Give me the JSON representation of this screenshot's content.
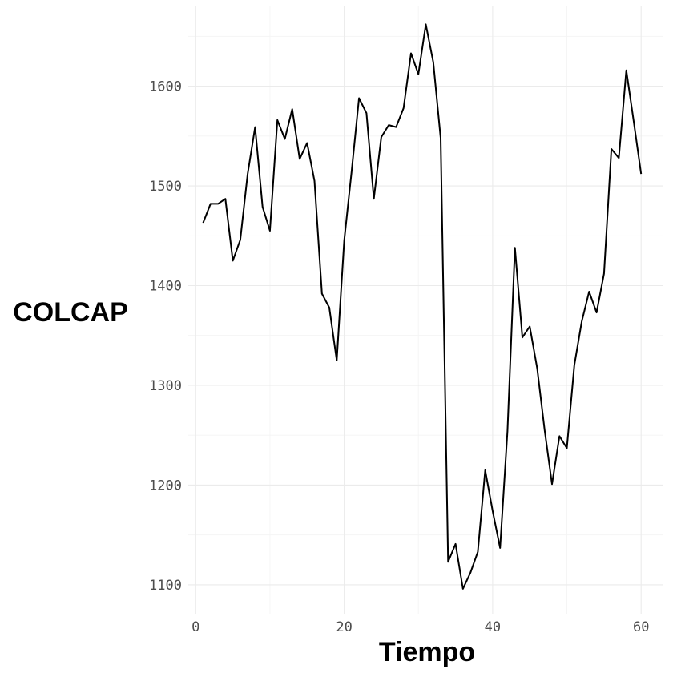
{
  "chart_data": {
    "type": "line",
    "title": "",
    "xlabel": "Tiempo",
    "ylabel": "COLCAP",
    "xlim": [
      -1,
      63
    ],
    "ylim": [
      1071,
      1680
    ],
    "x_ticks": [
      0,
      20,
      40,
      60
    ],
    "y_ticks": [
      1100,
      1200,
      1300,
      1400,
      1500,
      1600
    ],
    "grid": true,
    "legend": "none",
    "line_color": "#000000",
    "series": [
      {
        "x": [
          1,
          2,
          3,
          4,
          5,
          6,
          7,
          8,
          9,
          10,
          11,
          12,
          13,
          14,
          15,
          16,
          17,
          18,
          19,
          20,
          21,
          22,
          23,
          24,
          25,
          26,
          27,
          28,
          29,
          30,
          31,
          32,
          33,
          34,
          35,
          36,
          37,
          38,
          39,
          40,
          41,
          42,
          43,
          44,
          45,
          46,
          47,
          48,
          49,
          50,
          51,
          52,
          53,
          54,
          55,
          56,
          57,
          58,
          59,
          60
        ],
        "values": [
          1463,
          1482,
          1482,
          1487,
          1425,
          1446,
          1512,
          1559,
          1479,
          1455,
          1566,
          1547,
          1577,
          1527,
          1543,
          1505,
          1392,
          1378,
          1325,
          1445,
          1514,
          1588,
          1573,
          1487,
          1549,
          1561,
          1559,
          1578,
          1633,
          1612,
          1662,
          1624,
          1548,
          1123,
          1141,
          1096,
          1112,
          1133,
          1215,
          1174,
          1137,
          1254,
          1438,
          1348,
          1359,
          1317,
          1255,
          1201,
          1249,
          1237,
          1320,
          1364,
          1394,
          1373,
          1412,
          1537,
          1528,
          1616,
          1565,
          1512
        ]
      }
    ]
  }
}
